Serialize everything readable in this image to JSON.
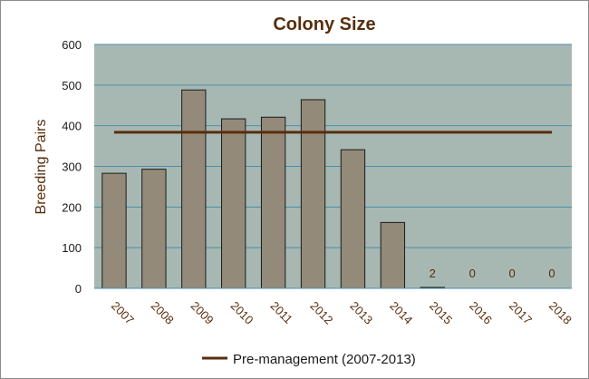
{
  "chart_data": {
    "type": "bar",
    "title": "Colony Size",
    "xlabel": "",
    "ylabel": "Breeding Pairs",
    "ylim": [
      0,
      600
    ],
    "yticks": [
      0,
      100,
      200,
      300,
      400,
      500,
      600
    ],
    "grid": true,
    "categories": [
      "2007",
      "2008",
      "2009",
      "2010",
      "2011",
      "2012",
      "2013",
      "2014",
      "2015",
      "2016",
      "2017",
      "2018"
    ],
    "series": [
      {
        "values": [
          283,
          293,
          488,
          417,
          421,
          464,
          341,
          162,
          2,
          0,
          0,
          0
        ],
        "data_labels": [
          null,
          null,
          null,
          null,
          null,
          null,
          null,
          null,
          "2",
          "0",
          "0",
          "0"
        ],
        "color": "#948a7a"
      },
      {
        "name": "Pre-management (2007-2013)",
        "type": "line",
        "values": [
          384,
          384,
          384,
          384,
          384,
          384,
          384,
          384,
          384,
          384,
          384,
          384
        ],
        "color": "#5a2d0c"
      }
    ],
    "legend": "bottom",
    "plot_background": "#a7b8b3",
    "grid_color": "#4a90a8"
  }
}
